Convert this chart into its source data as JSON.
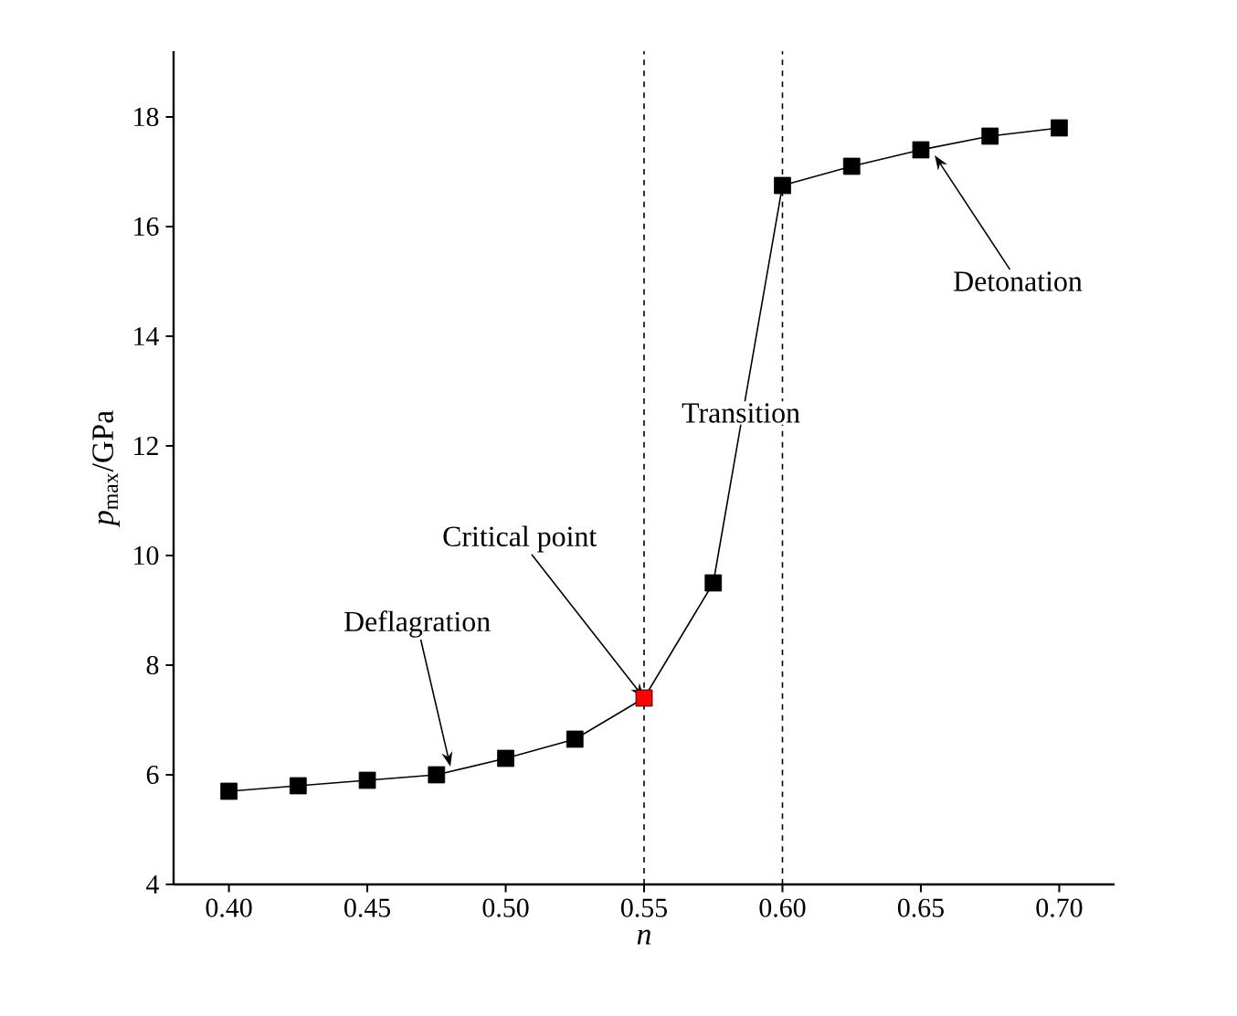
{
  "chart_data": {
    "type": "line",
    "xlabel": "n",
    "ylabel": "*p*$_{max}$/GPa",
    "x": [
      0.4,
      0.425,
      0.45,
      0.475,
      0.5,
      0.525,
      0.55,
      0.575,
      0.6,
      0.625,
      0.65,
      0.675,
      0.7
    ],
    "series": [
      {
        "color": "#000000",
        "values": [
          5.7,
          5.8,
          5.9,
          6.0,
          6.3,
          6.65,
          7.4,
          9.5,
          16.75,
          17.1,
          17.4,
          17.65,
          17.8
        ],
        "colors": [
          "#000000",
          "#000000",
          "#000000",
          "#000000",
          "#000000",
          "#000000",
          "#ff0000",
          "#000000",
          "#000000",
          "#000000",
          "#000000",
          "#000000",
          "#000000"
        ]
      }
    ],
    "marker": "square",
    "line_style": "solid",
    "xlim": [
      0.38,
      0.72
    ],
    "ylim": [
      4,
      19.2
    ],
    "xticks": [
      {
        "value": 0.4,
        "label": "0.40"
      },
      {
        "value": 0.45,
        "label": "0.45"
      },
      {
        "value": 0.5,
        "label": "0.50"
      },
      {
        "value": 0.55,
        "label": "0.55"
      },
      {
        "value": 0.6,
        "label": "0.60"
      },
      {
        "value": 0.65,
        "label": "0.65"
      },
      {
        "value": 0.7,
        "label": "0.70"
      }
    ],
    "yticks": [
      4,
      6,
      8,
      10,
      12,
      14,
      16,
      18
    ],
    "ref_lines": [
      {
        "axis": "x",
        "value": 0.55,
        "line_style": "dashed"
      },
      {
        "axis": "x",
        "value": 0.6,
        "line_style": "dashed"
      }
    ],
    "annotations": [
      {
        "text": "Deflagration",
        "x": 0.48,
        "y": 6.15
      },
      {
        "text": "Critical point",
        "x": 0.55,
        "y": 7.4
      },
      "Transition",
      {
        "text": "Detonation",
        "x": 0.655,
        "y": 17.3
      }
    ]
  }
}
